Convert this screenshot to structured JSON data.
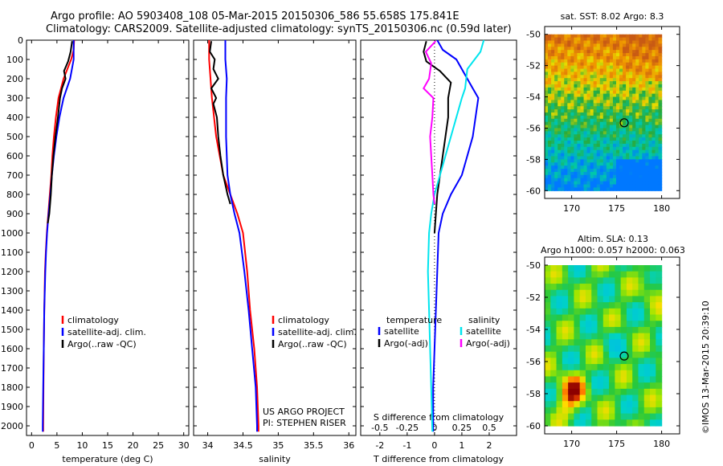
{
  "header": {
    "line1": "Argo profile: AO 5903408_108 05-Mar-2015 20150306_586 55.658S 175.841E",
    "line2": "Climatology: CARS2009. Satellite-adjusted climatology: synTS_20150306.nc (0.59d later)"
  },
  "side_label": "©IMOS 13-Mar-2015 20:39:10",
  "chart_data": [
    {
      "type": "line",
      "panel": "temperature",
      "xlabel": "temperature (deg C)",
      "ylabel": "",
      "xlim": [
        -1,
        31
      ],
      "ylim": [
        2050,
        0
      ],
      "y_reversed": true,
      "x_ticks": [
        0,
        5,
        10,
        15,
        20,
        25,
        30
      ],
      "y_ticks": [
        0,
        100,
        200,
        300,
        400,
        500,
        600,
        700,
        800,
        900,
        1000,
        1100,
        1200,
        1300,
        1400,
        1500,
        1600,
        1700,
        1800,
        1900,
        2000
      ],
      "legend": [
        "climatology",
        "satellite-adj. clim.",
        "Argo(..raw -QC)"
      ],
      "series": [
        {
          "name": "climatology",
          "color": "#ff0000",
          "points": [
            [
              8.4,
              0
            ],
            [
              8.3,
              50
            ],
            [
              7.8,
              100
            ],
            [
              6.3,
              200
            ],
            [
              5.3,
              300
            ],
            [
              4.8,
              400
            ],
            [
              4.4,
              500
            ],
            [
              4.1,
              600
            ],
            [
              3.9,
              700
            ],
            [
              3.6,
              800
            ],
            [
              3.3,
              900
            ],
            [
              3.0,
              1000
            ],
            [
              2.8,
              1100
            ],
            [
              2.65,
              1200
            ],
            [
              2.5,
              1400
            ],
            [
              2.4,
              1600
            ],
            [
              2.35,
              1800
            ],
            [
              2.3,
              2000
            ],
            [
              2.3,
              2030
            ]
          ]
        },
        {
          "name": "satellite-adj. clim.",
          "color": "#0000ff",
          "points": [
            [
              8.3,
              0
            ],
            [
              8.3,
              50
            ],
            [
              8.3,
              100
            ],
            [
              7.6,
              200
            ],
            [
              6.3,
              300
            ],
            [
              5.5,
              400
            ],
            [
              4.9,
              500
            ],
            [
              4.4,
              600
            ],
            [
              4.0,
              700
            ],
            [
              3.7,
              800
            ],
            [
              3.35,
              900
            ],
            [
              3.05,
              1000
            ],
            [
              2.85,
              1100
            ],
            [
              2.7,
              1200
            ],
            [
              2.5,
              1400
            ],
            [
              2.4,
              1600
            ],
            [
              2.3,
              1800
            ],
            [
              2.2,
              2000
            ],
            [
              2.2,
              2030
            ]
          ]
        },
        {
          "name": "Argo(..raw -QC)",
          "color": "#000000",
          "points": [
            [
              8.0,
              5
            ],
            [
              7.7,
              60
            ],
            [
              7.2,
              110
            ],
            [
              6.4,
              160
            ],
            [
              6.7,
              200
            ],
            [
              6.0,
              250
            ],
            [
              5.6,
              300
            ],
            [
              5.2,
              400
            ],
            [
              4.7,
              500
            ],
            [
              4.3,
              600
            ],
            [
              4.0,
              700
            ],
            [
              3.8,
              800
            ],
            [
              3.5,
              900
            ],
            [
              3.2,
              950
            ]
          ]
        }
      ]
    },
    {
      "type": "line",
      "panel": "salinity",
      "xlabel": "salinity",
      "ylabel": "",
      "xlim": [
        33.8,
        36.1
      ],
      "ylim": [
        2050,
        0
      ],
      "y_reversed": true,
      "x_ticks": [
        34,
        34.5,
        35,
        35.5,
        36
      ],
      "x_tick_labels": [
        "34",
        "34.5",
        "35",
        "35.5",
        "36"
      ],
      "legend": [
        "climatology",
        "satellite-adj. clim.",
        "Argo(..raw -QC)"
      ],
      "annotation": [
        "US ARGO PROJECT",
        "PI: STEPHEN RISER"
      ],
      "series": [
        {
          "name": "climatology",
          "color": "#ff0000",
          "points": [
            [
              34.02,
              0
            ],
            [
              34.02,
              100
            ],
            [
              34.06,
              300
            ],
            [
              34.12,
              500
            ],
            [
              34.22,
              700
            ],
            [
              34.32,
              800
            ],
            [
              34.42,
              900
            ],
            [
              34.5,
              1000
            ],
            [
              34.56,
              1200
            ],
            [
              34.6,
              1400
            ],
            [
              34.66,
              1600
            ],
            [
              34.7,
              1800
            ],
            [
              34.72,
              2000
            ],
            [
              34.72,
              2030
            ]
          ]
        },
        {
          "name": "satellite-adj. clim.",
          "color": "#0000ff",
          "points": [
            [
              34.25,
              0
            ],
            [
              34.25,
              100
            ],
            [
              34.27,
              200
            ],
            [
              34.26,
              300
            ],
            [
              34.26,
              500
            ],
            [
              34.28,
              700
            ],
            [
              34.32,
              800
            ],
            [
              34.38,
              900
            ],
            [
              34.45,
              1000
            ],
            [
              34.52,
              1200
            ],
            [
              34.58,
              1400
            ],
            [
              34.63,
              1600
            ],
            [
              34.68,
              1800
            ],
            [
              34.7,
              2000
            ],
            [
              34.7,
              2030
            ]
          ]
        },
        {
          "name": "Argo(..raw -QC)",
          "color": "#000000",
          "points": [
            [
              34.05,
              5
            ],
            [
              34.03,
              60
            ],
            [
              34.1,
              100
            ],
            [
              34.08,
              150
            ],
            [
              34.15,
              200
            ],
            [
              34.05,
              250
            ],
            [
              34.12,
              300
            ],
            [
              34.08,
              330
            ],
            [
              34.13,
              400
            ],
            [
              34.15,
              500
            ],
            [
              34.18,
              600
            ],
            [
              34.22,
              700
            ],
            [
              34.28,
              800
            ],
            [
              34.32,
              850
            ]
          ]
        }
      ]
    },
    {
      "type": "line",
      "panel": "difference",
      "xlabel": "T difference from climatology",
      "x2label": "S difference from climatology",
      "ylabel": "",
      "xlim": [
        -2.7,
        3
      ],
      "x_ticks": [
        -2,
        -1,
        0,
        1,
        2
      ],
      "x2_ticks": [
        -0.5,
        -0.25,
        0,
        0.25,
        0.5
      ],
      "x2_tick_labels": [
        "-0.5",
        "-0.25",
        "0",
        "0.25",
        "0.5"
      ],
      "ylim": [
        2050,
        0
      ],
      "y_reversed": true,
      "legend": {
        "temperature": [
          "satellite",
          "Argo(-adj)"
        ],
        "salinity": [
          "satellite",
          "Argo(-adj)"
        ]
      },
      "legend_titles": [
        "temperature",
        "salinity"
      ],
      "series": [
        {
          "name": "satellite",
          "group": "temperature",
          "color": "#0000ff",
          "points": [
            [
              0.1,
              0
            ],
            [
              0.3,
              50
            ],
            [
              0.8,
              100
            ],
            [
              1.4,
              250
            ],
            [
              1.6,
              300
            ],
            [
              1.4,
              500
            ],
            [
              1.2,
              600
            ],
            [
              1.0,
              700
            ],
            [
              0.6,
              800
            ],
            [
              0.3,
              900
            ],
            [
              0.15,
              1000
            ],
            [
              0.1,
              1200
            ],
            [
              0.05,
              1400
            ],
            [
              0.0,
              1600
            ],
            [
              -0.05,
              1800
            ],
            [
              -0.05,
              2030
            ]
          ]
        },
        {
          "name": "Argo(-adj)",
          "group": "temperature",
          "color": "#000000",
          "points": [
            [
              -0.3,
              5
            ],
            [
              -0.4,
              60
            ],
            [
              -0.3,
              110
            ],
            [
              0.2,
              160
            ],
            [
              0.6,
              220
            ],
            [
              0.5,
              300
            ],
            [
              0.5,
              400
            ],
            [
              0.4,
              500
            ],
            [
              0.3,
              600
            ],
            [
              0.2,
              700
            ],
            [
              0.1,
              800
            ],
            [
              0.05,
              900
            ],
            [
              0.0,
              1000
            ]
          ]
        },
        {
          "name": "satellite",
          "group": "salinity",
          "color": "#00e5ee",
          "points": [
            [
              0.45,
              0
            ],
            [
              0.42,
              60
            ],
            [
              0.3,
              150
            ],
            [
              0.28,
              250
            ],
            [
              0.25,
              300
            ],
            [
              0.2,
              400
            ],
            [
              0.15,
              500
            ],
            [
              0.1,
              600
            ],
            [
              0.05,
              700
            ],
            [
              0.0,
              800
            ],
            [
              -0.03,
              900
            ],
            [
              -0.05,
              1000
            ],
            [
              -0.06,
              1200
            ],
            [
              -0.05,
              1400
            ],
            [
              -0.04,
              1600
            ],
            [
              -0.03,
              1800
            ],
            [
              -0.02,
              2030
            ]
          ]
        },
        {
          "name": "Argo(-adj)",
          "group": "salinity",
          "color": "#ff00ff",
          "points": [
            [
              0.01,
              5
            ],
            [
              -0.08,
              60
            ],
            [
              -0.03,
              120
            ],
            [
              -0.05,
              200
            ],
            [
              -0.1,
              250
            ],
            [
              -0.01,
              300
            ],
            [
              -0.02,
              400
            ],
            [
              -0.04,
              500
            ],
            [
              -0.03,
              600
            ],
            [
              -0.02,
              700
            ],
            [
              -0.01,
              800
            ],
            [
              0.0,
              850
            ]
          ]
        }
      ]
    },
    {
      "type": "heatmap",
      "panel": "sst_map",
      "title": "sat. SST: 8.02  Argo: 8.3",
      "x_ticks": [
        170,
        175,
        180
      ],
      "y_ticks": [
        -50,
        -52,
        -54,
        -56,
        -58,
        -60
      ],
      "xlim": [
        167,
        182
      ],
      "ylim": [
        -60.5,
        -49.5
      ],
      "data_extent": {
        "lon": [
          167,
          180
        ],
        "lat": [
          -60,
          -50
        ]
      },
      "marker": {
        "lon": 175.841,
        "lat": -55.658
      }
    },
    {
      "type": "heatmap",
      "panel": "sla_map",
      "title_line1": "Altim. SLA: 0.13",
      "title_line2": "Argo h1000: 0.057  h2000: 0.063",
      "x_ticks": [
        170,
        175,
        180
      ],
      "y_ticks": [
        -50,
        -52,
        -54,
        -56,
        -58,
        -60
      ],
      "xlim": [
        167,
        182
      ],
      "ylim": [
        -60.5,
        -49.5
      ],
      "data_extent": {
        "lon": [
          167,
          180
        ],
        "lat": [
          -60,
          -50
        ]
      },
      "marker": {
        "lon": 175.841,
        "lat": -55.658
      }
    }
  ]
}
